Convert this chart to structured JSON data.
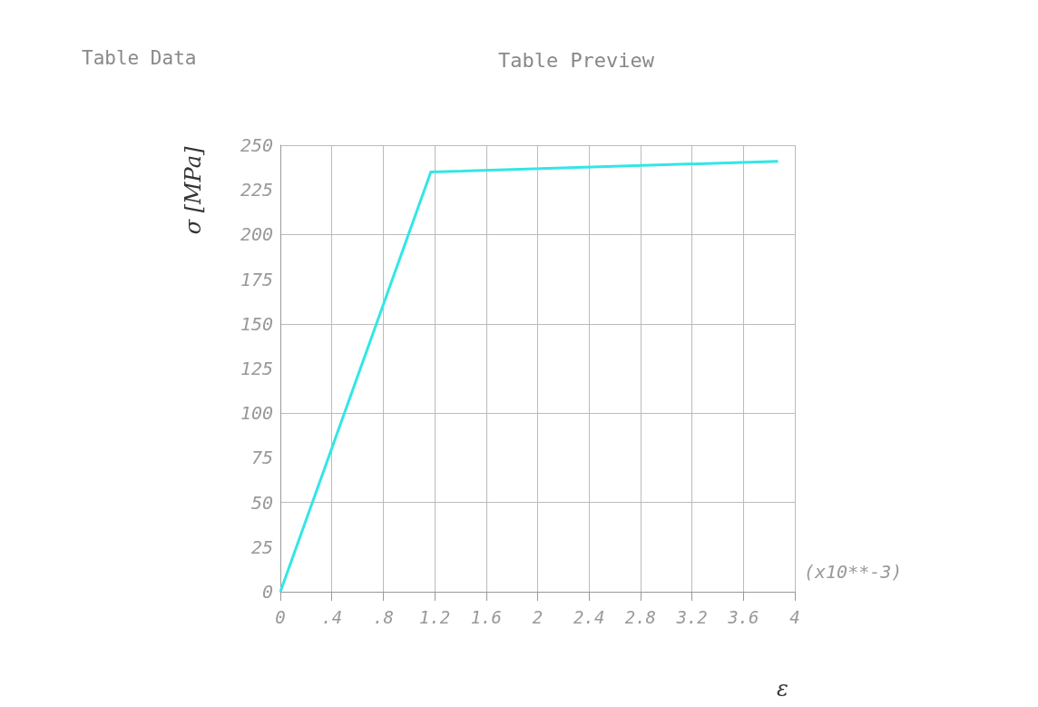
{
  "chart_data": {
    "type": "line",
    "title": "Table Preview",
    "subtitle": "Table Data",
    "xlabel": "ε",
    "ylabel": "σ [MPa]",
    "annotations": [
      "(x10**-3)"
    ],
    "x": [
      0,
      1.17,
      3.87
    ],
    "series": [
      {
        "color": "#33e6e6",
        "values": [
          0,
          235,
          241
        ]
      }
    ],
    "xlim": [
      0,
      4
    ],
    "xticks": [
      0,
      {
        "value": 0.4,
        "label": ".4"
      },
      {
        "value": 0.8,
        "label": ".8"
      },
      1.2,
      1.6,
      2,
      2.4,
      2.8,
      3.2,
      3.6,
      4
    ],
    "ylim": [
      0,
      250
    ],
    "yticks": [
      0,
      25,
      50,
      75,
      100,
      125,
      150,
      175,
      200,
      225,
      250
    ],
    "grid": true,
    "marker": "none",
    "line_style": "solid"
  }
}
